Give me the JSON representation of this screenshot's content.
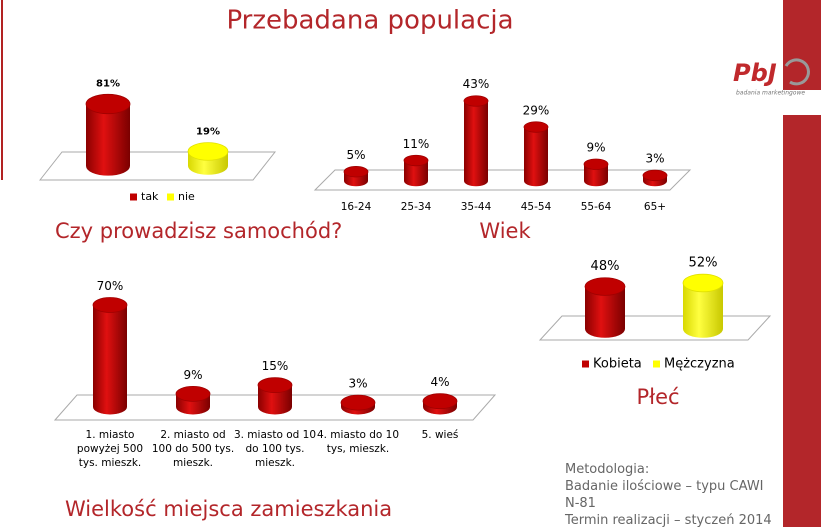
{
  "title": "Przebadana populacja",
  "logo": {
    "text": "PbJ",
    "tagline": "badania marketingowe"
  },
  "chart_data": [
    {
      "type": "bar",
      "title": "Czy prowadzisz samochód?",
      "series": [
        {
          "name": "tak",
          "color": "#c00000",
          "values": [
            81
          ],
          "value_labels": [
            "81%"
          ]
        },
        {
          "name": "nie",
          "color": "#ffff00",
          "values": [
            19
          ],
          "value_labels": [
            "19%"
          ]
        }
      ]
    },
    {
      "type": "bar",
      "title": "Wiek",
      "color": "#c00000",
      "categories": [
        "16-24",
        "25-34",
        "35-44",
        "45-54",
        "55-64",
        "65+"
      ],
      "values": [
        5,
        11,
        43,
        29,
        9,
        3
      ],
      "value_labels": [
        "5%",
        "11%",
        "43%",
        "29%",
        "9%",
        "3%"
      ]
    },
    {
      "type": "bar",
      "title": "Płeć",
      "series": [
        {
          "name": "Kobieta",
          "color": "#c00000",
          "values": [
            48
          ],
          "value_labels": [
            "48%"
          ]
        },
        {
          "name": "Mężczyzna",
          "color": "#ffff00",
          "values": [
            52
          ],
          "value_labels": [
            "52%"
          ]
        }
      ]
    },
    {
      "type": "bar",
      "title": "Wielkość miejsca zamieszkania",
      "color": "#c00000",
      "categories": [
        "1. miasto powyżej 500 tys. mieszk.",
        "2. miasto od 100 do 500 tys. mieszk.",
        "3. miasto od 10 do 100 tys. mieszk.",
        "4. miasto do 10 tys, mieszk.",
        "5. wieś"
      ],
      "values": [
        70,
        9,
        15,
        3,
        4
      ],
      "value_labels": [
        "70%",
        "9%",
        "15%",
        "3%",
        "4%"
      ]
    }
  ],
  "methodology": [
    "Metodologia:",
    "Badanie ilościowe – typu CAWI",
    "N-81",
    "Termin realizacji – styczeń 2014"
  ]
}
